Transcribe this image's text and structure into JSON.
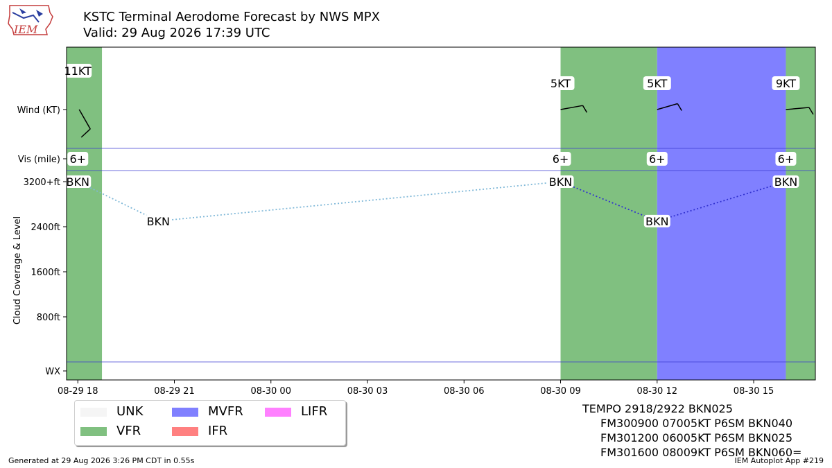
{
  "header": {
    "title_line1": "KSTC Terminal Aerodome Forecast by NWS MPX",
    "title_line2": "Valid: 29 Aug 2026 17:39 UTC",
    "logo_text": "IEM"
  },
  "chart_data": {
    "type": "timeline",
    "x_ticks": [
      "08-29 18",
      "08-29 21",
      "08-30 00",
      "08-30 03",
      "08-30 06",
      "08-30 09",
      "08-30 12",
      "08-30 15"
    ],
    "xlim": [
      "2026-08-29 17:39",
      "2026-08-30 16:55"
    ],
    "y_panels": [
      "Wind (KT)",
      "Vis (mile)",
      "Cloud Coverage & Level",
      "WX"
    ],
    "cloud_yticks": [
      "800ft",
      "1600ft",
      "2400ft",
      "3200+ft"
    ],
    "cloud_ylim": [
      0,
      3200
    ],
    "category_bands": [
      {
        "start": "2026-08-29 17:39",
        "end": "2026-08-29 18:45",
        "category": "VFR",
        "color": "#80c080"
      },
      {
        "start": "2026-08-30 09:00",
        "end": "2026-08-30 12:00",
        "category": "VFR",
        "color": "#80c080"
      },
      {
        "start": "2026-08-30 12:00",
        "end": "2026-08-30 16:00",
        "category": "MVFR",
        "color": "#8080ff"
      },
      {
        "start": "2026-08-30 16:00",
        "end": "2026-08-30 16:55",
        "category": "VFR",
        "color": "#80c080"
      }
    ],
    "wind": [
      {
        "time": "2026-08-29 18:00",
        "label": "11KT",
        "speed_kt": 11,
        "dir_deg": 300
      },
      {
        "time": "2026-08-30 09:00",
        "label": "5KT",
        "speed_kt": 5,
        "dir_deg": 70
      },
      {
        "time": "2026-08-30 12:00",
        "label": "5KT",
        "speed_kt": 5,
        "dir_deg": 60
      },
      {
        "time": "2026-08-30 16:00",
        "label": "9KT",
        "speed_kt": 9,
        "dir_deg": 80
      }
    ],
    "visibility": [
      {
        "time": "2026-08-29 18:00",
        "label": "6+"
      },
      {
        "time": "2026-08-30 09:00",
        "label": "6+"
      },
      {
        "time": "2026-08-30 12:00",
        "label": "6+"
      },
      {
        "time": "2026-08-30 16:00",
        "label": "6+"
      }
    ],
    "clouds": [
      {
        "time": "2026-08-29 18:00",
        "coverage": "BKN",
        "level_ft": 3200,
        "color": "#7fb8d8"
      },
      {
        "time": "2026-08-29 20:30",
        "coverage": "BKN",
        "level_ft": 2500,
        "color": "#7fb8d8"
      },
      {
        "time": "2026-08-30 09:00",
        "coverage": "BKN",
        "level_ft": 3200,
        "color": "#2e8b57"
      },
      {
        "time": "2026-08-30 12:00",
        "coverage": "BKN",
        "level_ft": 2500,
        "color": "#3030d0"
      },
      {
        "time": "2026-08-30 16:00",
        "coverage": "BKN",
        "level_ft": 3200,
        "color": "#3030d0"
      }
    ],
    "legend": [
      {
        "label": "UNK",
        "color": "#f5f5f5"
      },
      {
        "label": "MVFR",
        "color": "#8080ff"
      },
      {
        "label": "LIFR",
        "color": "#ff80ff"
      },
      {
        "label": "VFR",
        "color": "#80c080"
      },
      {
        "label": "IFR",
        "color": "#ff8080"
      }
    ]
  },
  "taf_text": [
    "TEMPO 2918/2922 BKN025",
    "FM300900 07005KT P6SM BKN040",
    "FM301200 06005KT P6SM BKN025",
    "FM301600 08009KT P6SM BKN060="
  ],
  "footer": {
    "generated": "Generated at 29 Aug 2026 3:26 PM CDT in 0.55s",
    "app": "IEM Autoplot App #219"
  }
}
